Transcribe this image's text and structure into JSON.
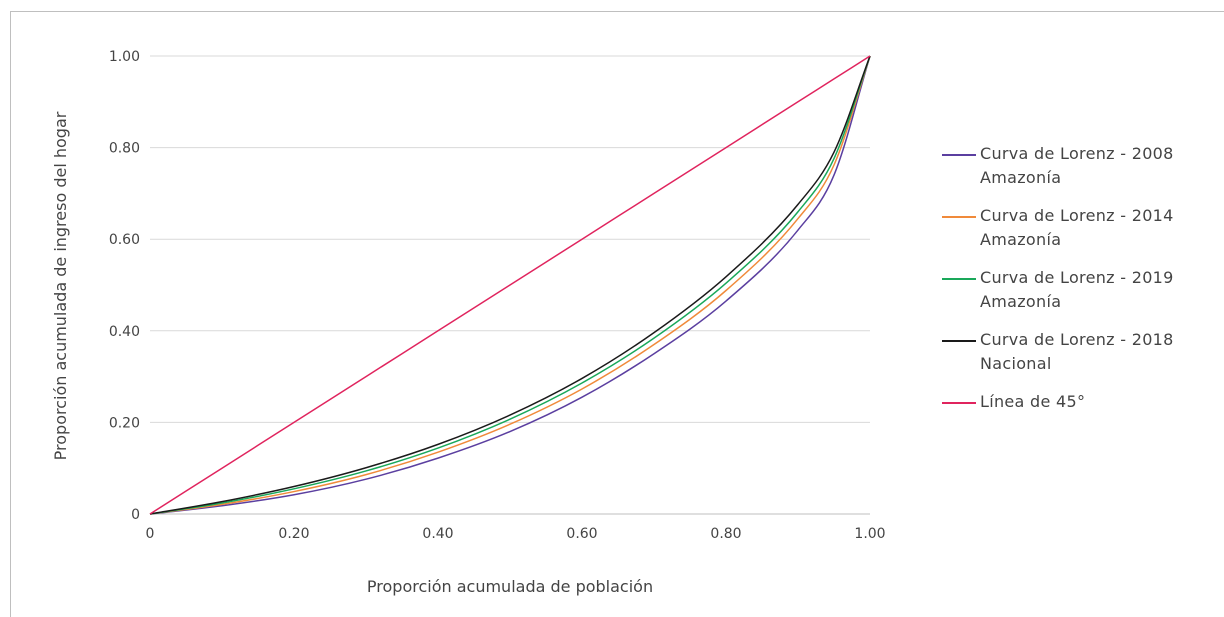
{
  "colors": {
    "grid": "#d9d9d9",
    "axis": "#bfbfbf"
  },
  "chart_data": {
    "type": "line",
    "title": "",
    "xlabel": "Proporción acumulada de población",
    "ylabel": "Proporción acumulada de ingreso del hogar",
    "xlim": [
      0,
      1
    ],
    "ylim": [
      0,
      1
    ],
    "grid": "horizontal",
    "legend_position": "right",
    "x_ticks": [
      "0",
      "0.20",
      "0.40",
      "0.60",
      "0.80",
      "1.00"
    ],
    "y_ticks": [
      "0",
      "0.20",
      "0.40",
      "0.60",
      "0.80",
      "1.00"
    ],
    "x": [
      0,
      0.1,
      0.2,
      0.3,
      0.4,
      0.5,
      0.6,
      0.7,
      0.8,
      0.9,
      0.95,
      1.0
    ],
    "series": [
      {
        "name": "Curva de Lorenz - 2008 Amazonía",
        "color": "#5b3fa0",
        "values": [
          0,
          0.018,
          0.042,
          0.076,
          0.122,
          0.18,
          0.255,
          0.35,
          0.465,
          0.62,
          0.74,
          1.0
        ]
      },
      {
        "name": "Curva de Lorenz - 2014 Amazonía",
        "color": "#f08a3a",
        "values": [
          0,
          0.021,
          0.049,
          0.086,
          0.135,
          0.196,
          0.273,
          0.37,
          0.488,
          0.645,
          0.762,
          1.0
        ]
      },
      {
        "name": "Curva de Lorenz - 2019 Amazonía",
        "color": "#1aa85a",
        "values": [
          0,
          0.024,
          0.055,
          0.094,
          0.144,
          0.207,
          0.286,
          0.384,
          0.504,
          0.66,
          0.776,
          1.0
        ]
      },
      {
        "name": "Curva de Lorenz - 2018 Nacional",
        "color": "#1a1a1a",
        "values": [
          0,
          0.027,
          0.06,
          0.101,
          0.152,
          0.216,
          0.296,
          0.396,
          0.518,
          0.676,
          0.79,
          1.0
        ]
      },
      {
        "name": "Línea de 45°",
        "color": "#e0245e",
        "values": [
          0,
          0.1,
          0.2,
          0.3,
          0.4,
          0.5,
          0.6,
          0.7,
          0.8,
          0.9,
          0.95,
          1.0
        ]
      }
    ]
  },
  "legend": {
    "items": [
      {
        "line1": "Curva de Lorenz - 2008",
        "line2": "Amazonía",
        "color": "#5b3fa0"
      },
      {
        "line1": "Curva de Lorenz - 2014",
        "line2": "Amazonía",
        "color": "#f08a3a"
      },
      {
        "line1": "Curva de Lorenz - 2019",
        "line2": "Amazonía",
        "color": "#1aa85a"
      },
      {
        "line1": "Curva de Lorenz - 2018",
        "line2": "Nacional",
        "color": "#1a1a1a"
      },
      {
        "line1": "Línea de 45°",
        "line2": "",
        "color": "#e0245e"
      }
    ]
  }
}
